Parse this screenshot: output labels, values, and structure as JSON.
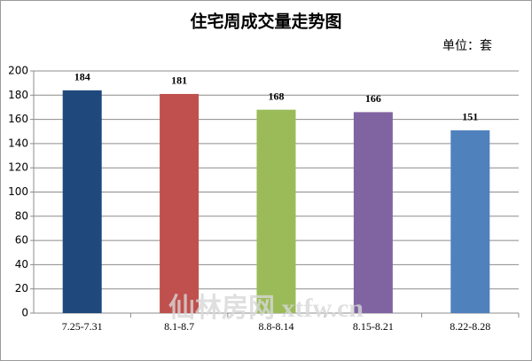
{
  "chart_data": {
    "type": "bar",
    "title": "住宅周成交量走势图",
    "unit_label": "单位：套",
    "watermark": "仙林房网 xtfw.cn",
    "categories": [
      "7.25-7.31",
      "8.1-8.7",
      "8.8-8.14",
      "8.15-8.21",
      "8.22-8.28"
    ],
    "values": [
      184,
      181,
      168,
      166,
      151
    ],
    "colors": [
      "#1f497d",
      "#c0504d",
      "#9bbb59",
      "#8064a2",
      "#4f81bd"
    ],
    "ylim": [
      0,
      200
    ],
    "yticks": [
      0,
      20,
      40,
      60,
      80,
      100,
      120,
      140,
      160,
      180,
      200
    ],
    "grid": true
  }
}
